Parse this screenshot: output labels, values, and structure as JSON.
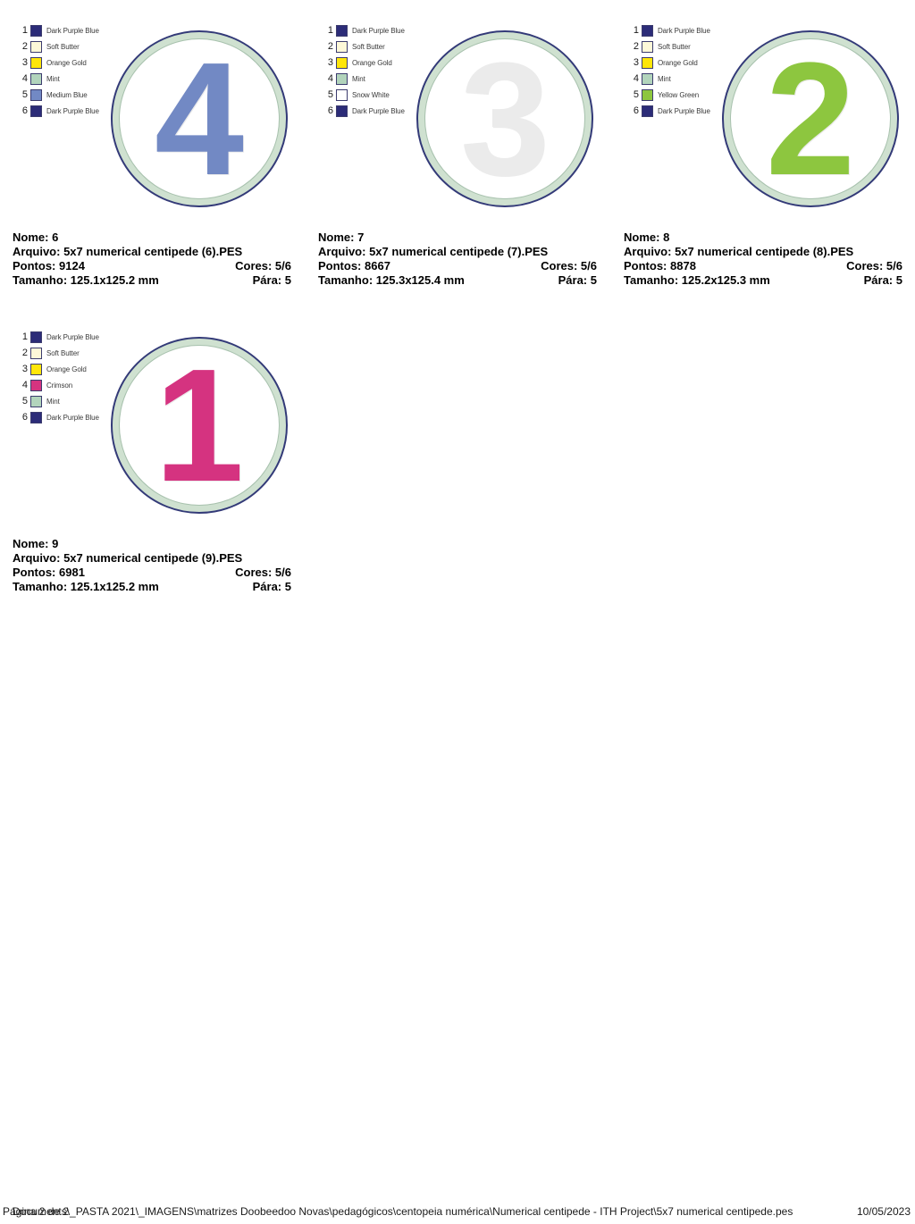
{
  "labels": {
    "nome": "Nome:",
    "arquivo": "Arquivo:",
    "pontos": "Pontos:",
    "cores": "Cores:",
    "tamanho": "Tamanho:",
    "para": "Pára:"
  },
  "colors": {
    "hoop_outline": "#333a78",
    "hoop_ring_mint": "#cfe1d0",
    "hoop_center": "#ffffff"
  },
  "designs": [
    {
      "digit": "4",
      "digit_color": "#7289c4",
      "threads": [
        {
          "n": "1",
          "name": "Dark Purple Blue",
          "hex": "#2c2c78"
        },
        {
          "n": "2",
          "name": "Soft Butter",
          "hex": "#fdf8d8"
        },
        {
          "n": "3",
          "name": "Orange Gold",
          "hex": "#ffe60a"
        },
        {
          "n": "4",
          "name": "Mint",
          "hex": "#b2d4bc"
        },
        {
          "n": "5",
          "name": "Medium Blue",
          "hex": "#7289c4"
        },
        {
          "n": "6",
          "name": "Dark Purple Blue",
          "hex": "#2c2c78"
        }
      ],
      "values": {
        "nome": "6",
        "arquivo": "5x7 numerical centipede (6).PES",
        "pontos": "9124",
        "cores": "5/6",
        "tamanho": "125.1x125.2 mm",
        "para": "5"
      }
    },
    {
      "digit": "3",
      "digit_color": "#ebebeb",
      "threads": [
        {
          "n": "1",
          "name": "Dark Purple Blue",
          "hex": "#2c2c78"
        },
        {
          "n": "2",
          "name": "Soft Butter",
          "hex": "#fdf8d8"
        },
        {
          "n": "3",
          "name": "Orange Gold",
          "hex": "#ffe60a"
        },
        {
          "n": "4",
          "name": "Mint",
          "hex": "#b2d4bc"
        },
        {
          "n": "5",
          "name": "Snow White",
          "hex": "#ffffff"
        },
        {
          "n": "6",
          "name": "Dark Purple Blue",
          "hex": "#2c2c78"
        }
      ],
      "values": {
        "nome": "7",
        "arquivo": "5x7 numerical centipede (7).PES",
        "pontos": "8667",
        "cores": "5/6",
        "tamanho": "125.3x125.4 mm",
        "para": "5"
      }
    },
    {
      "digit": "2",
      "digit_color": "#8dc63f",
      "threads": [
        {
          "n": "1",
          "name": "Dark Purple Blue",
          "hex": "#2c2c78"
        },
        {
          "n": "2",
          "name": "Soft Butter",
          "hex": "#fdf8d8"
        },
        {
          "n": "3",
          "name": "Orange Gold",
          "hex": "#ffe60a"
        },
        {
          "n": "4",
          "name": "Mint",
          "hex": "#b2d4bc"
        },
        {
          "n": "5",
          "name": "Yellow Green",
          "hex": "#8dc63f"
        },
        {
          "n": "6",
          "name": "Dark Purple Blue",
          "hex": "#2c2c78"
        }
      ],
      "values": {
        "nome": "8",
        "arquivo": "5x7 numerical centipede (8).PES",
        "pontos": "8878",
        "cores": "5/6",
        "tamanho": "125.2x125.3 mm",
        "para": "5"
      }
    },
    {
      "digit": "1",
      "digit_color": "#d53380",
      "threads": [
        {
          "n": "1",
          "name": "Dark Purple Blue",
          "hex": "#2c2c78"
        },
        {
          "n": "2",
          "name": "Soft Butter",
          "hex": "#fdf8d8"
        },
        {
          "n": "3",
          "name": "Orange Gold",
          "hex": "#ffe60a"
        },
        {
          "n": "4",
          "name": "Crimson",
          "hex": "#d53380"
        },
        {
          "n": "5",
          "name": "Mint",
          "hex": "#b2d4bc"
        },
        {
          "n": "6",
          "name": "Dark Purple Blue",
          "hex": "#2c2c78"
        }
      ],
      "values": {
        "nome": "9",
        "arquivo": "5x7 numerical centipede (9).PES",
        "pontos": "6981",
        "cores": "5/6",
        "tamanho": "125.1x125.2 mm",
        "para": "5"
      }
    }
  ],
  "footer": {
    "page_label": "Página 2 de 2",
    "path": "Documents\\_PASTA 2021\\_IMAGENS\\matrizes Doobeedoo Novas\\pedagógicos\\centopeia numérica\\Numerical centipede - ITH Project\\5x7 numerical centipede.pes",
    "date": "10/05/2023"
  }
}
